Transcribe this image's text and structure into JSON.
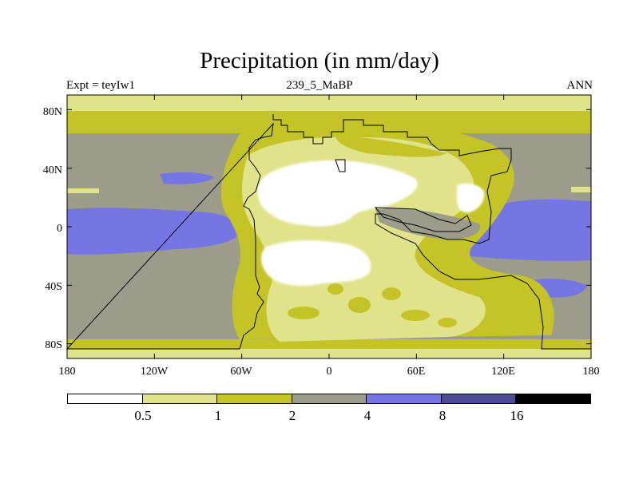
{
  "title": "Precipitation (in mm/day)",
  "left_label": "Expt = teyIw1",
  "center_label": "239_5_MaBP",
  "right_label": "ANN",
  "map": {
    "projection": "cylindrical equidistant",
    "lon_range": [
      -180,
      180
    ],
    "lat_range": [
      -90,
      90
    ],
    "lon_ticks": [
      {
        "lon": -180,
        "label": "180"
      },
      {
        "lon": -120,
        "label": "120W"
      },
      {
        "lon": -60,
        "label": "60W"
      },
      {
        "lon": 0,
        "label": "0"
      },
      {
        "lon": 60,
        "label": "60E"
      },
      {
        "lon": 120,
        "label": "120E"
      },
      {
        "lon": 180,
        "label": "180"
      }
    ],
    "lat_ticks": [
      {
        "lat": 80,
        "label": "80N"
      },
      {
        "lat": 40,
        "label": "40N"
      },
      {
        "lat": 0,
        "label": "0"
      },
      {
        "lat": -40,
        "label": "40S"
      },
      {
        "lat": -80,
        "label": "80S"
      }
    ]
  },
  "colorbar": {
    "colors": [
      "#ffffff",
      "#e1e38b",
      "#c4c428",
      "#9c9c8a",
      "#7576e3",
      "#4b4b96",
      "#000000"
    ],
    "boundaries": [
      "0.5",
      "1",
      "2",
      "4",
      "8",
      "16"
    ]
  },
  "icons": {
    "pangea_outline": "landmass-outline"
  }
}
